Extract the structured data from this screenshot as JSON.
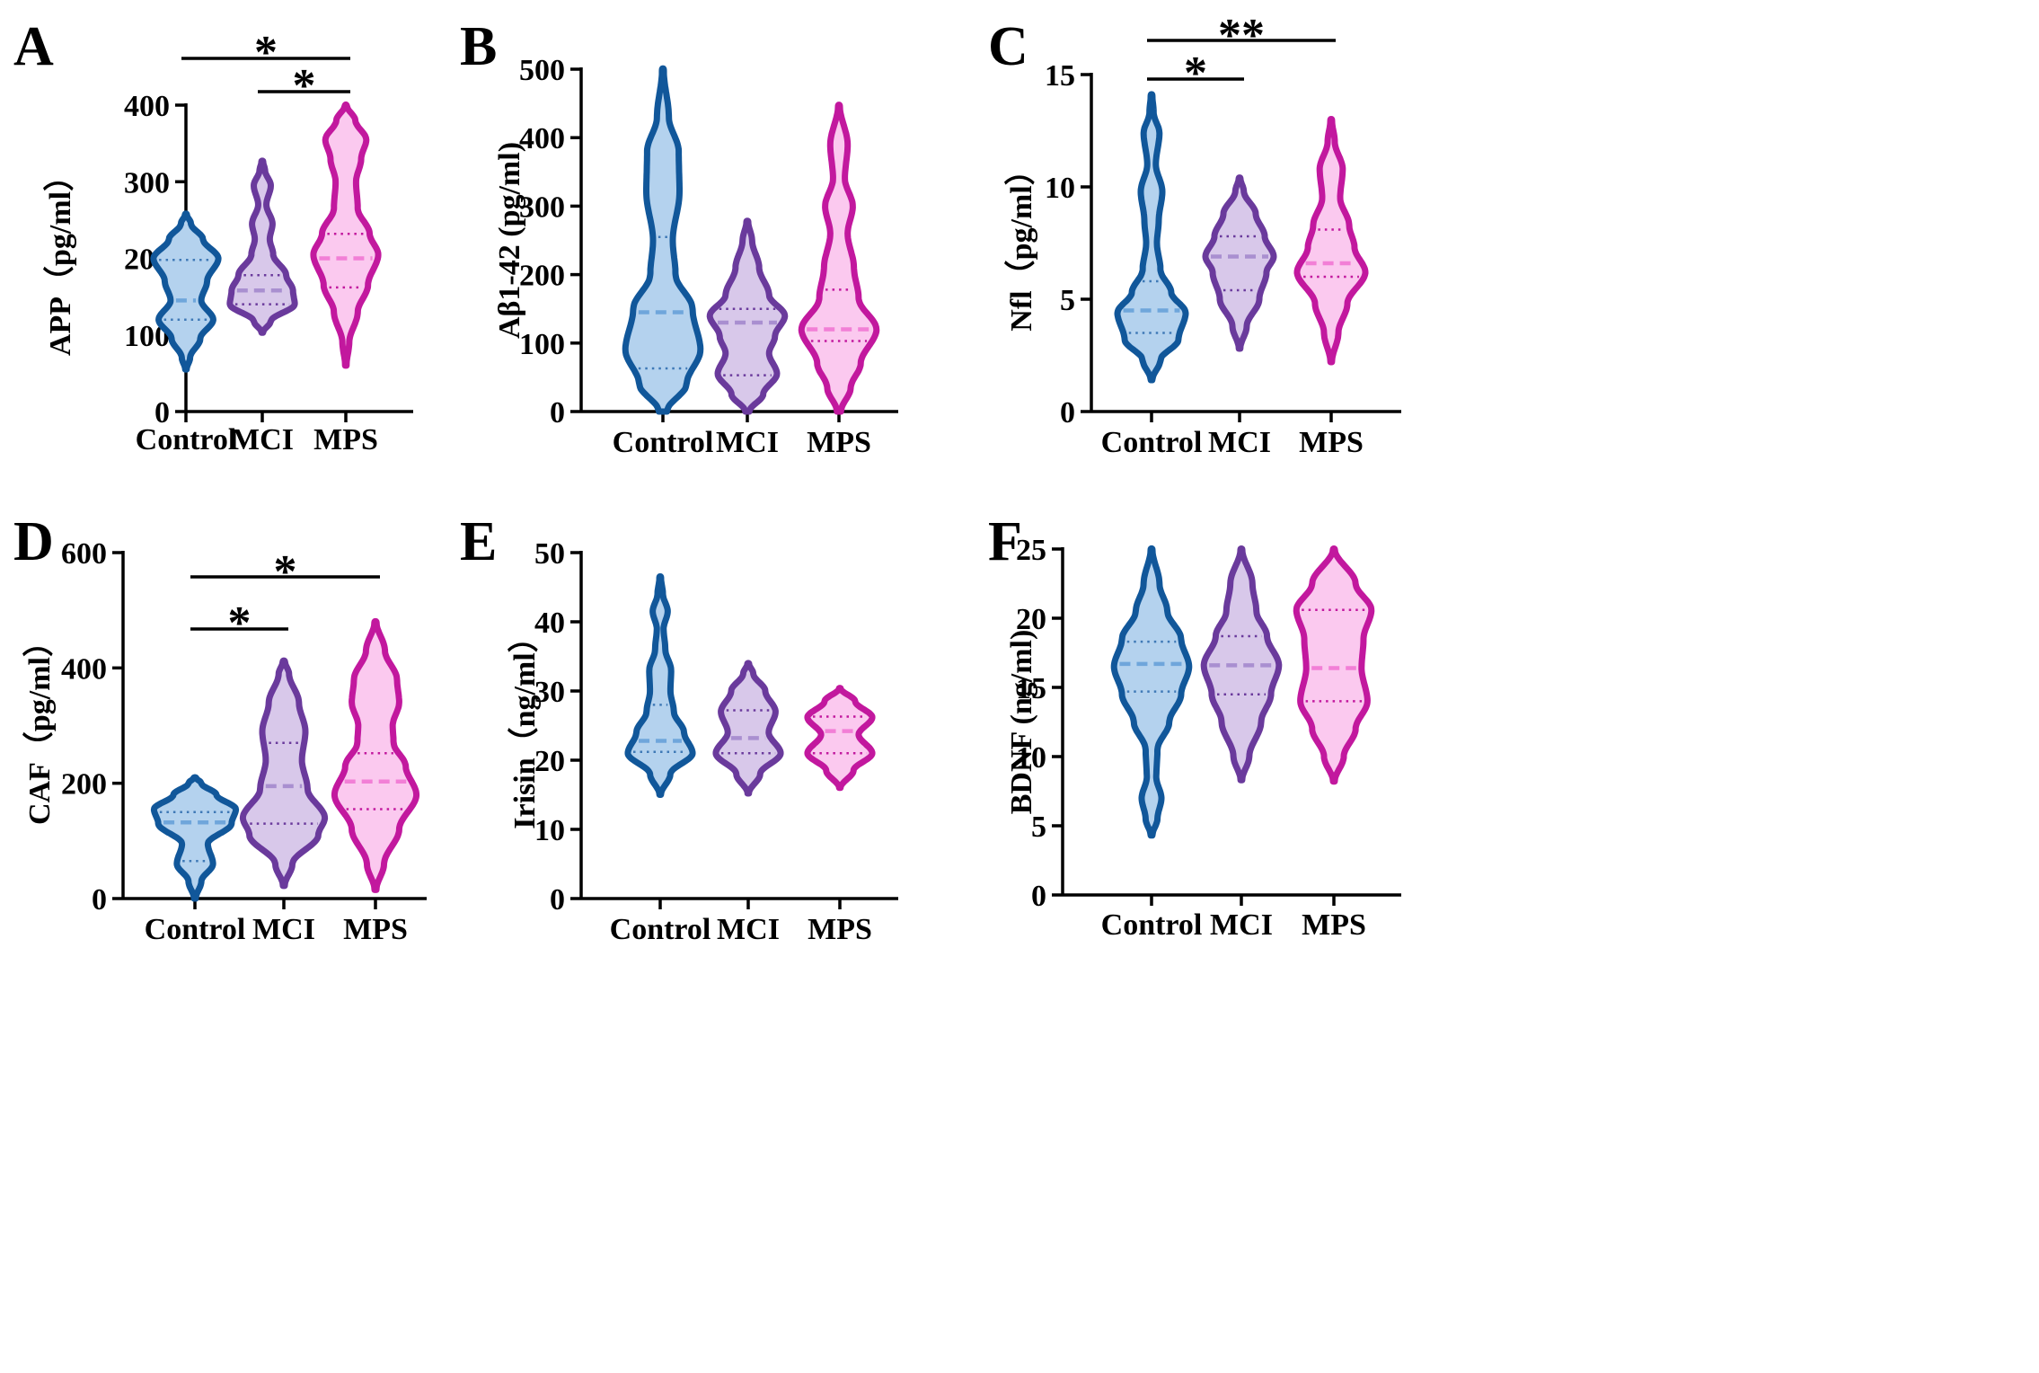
{
  "colors": {
    "Control": {
      "stroke": "#11579a",
      "fill": "#b4d2ee",
      "median": "#6fa6db",
      "quart": "#3f79b6"
    },
    "MCI": {
      "stroke": "#6a3a9c",
      "fill": "#d8c8ea",
      "median": "#a98fd0",
      "quart": "#6a3a9c"
    },
    "MPS": {
      "stroke": "#c2189e",
      "fill": "#fbc9ef",
      "median": "#f27fd6",
      "quart": "#c2189e"
    }
  },
  "chart_data": [
    {
      "panel": "A",
      "type": "violin",
      "ylabel": "APP（pg/ml）",
      "ylim": [
        0,
        400
      ],
      "yticks": [
        "0",
        "100",
        "200",
        "300",
        "400"
      ],
      "categories": [
        "Control",
        "MCI",
        "MPS"
      ],
      "series": [
        {
          "name": "Control",
          "ymin": 55,
          "ymax": 258,
          "q1": 120,
          "median": 145,
          "q3": 198,
          "profile": [
            [
              55,
              0.02
            ],
            [
              70,
              0.12
            ],
            [
              95,
              0.42
            ],
            [
              120,
              0.8
            ],
            [
              145,
              0.45
            ],
            [
              170,
              0.62
            ],
            [
              200,
              0.95
            ],
            [
              225,
              0.5
            ],
            [
              245,
              0.15
            ],
            [
              258,
              0.02
            ]
          ]
        },
        {
          "name": "MCI",
          "ymin": 103,
          "ymax": 327,
          "q1": 140,
          "median": 158,
          "q3": 178,
          "profile": [
            [
              103,
              0.02
            ],
            [
              118,
              0.25
            ],
            [
              140,
              0.95
            ],
            [
              158,
              0.9
            ],
            [
              178,
              0.7
            ],
            [
              205,
              0.32
            ],
            [
              225,
              0.22
            ],
            [
              245,
              0.3
            ],
            [
              270,
              0.12
            ],
            [
              295,
              0.25
            ],
            [
              315,
              0.08
            ],
            [
              327,
              0.02
            ]
          ]
        },
        {
          "name": "MPS",
          "ymin": 60,
          "ymax": 400,
          "q1": 162,
          "median": 200,
          "q3": 232,
          "profile": [
            [
              60,
              0.02
            ],
            [
              90,
              0.1
            ],
            [
              130,
              0.35
            ],
            [
              165,
              0.65
            ],
            [
              205,
              0.95
            ],
            [
              232,
              0.7
            ],
            [
              265,
              0.35
            ],
            [
              300,
              0.3
            ],
            [
              330,
              0.45
            ],
            [
              355,
              0.6
            ],
            [
              380,
              0.28
            ],
            [
              400,
              0.02
            ]
          ]
        }
      ],
      "significance": [
        {
          "from": "Control",
          "to": "MPS",
          "label": "*"
        },
        {
          "from": "MCI",
          "to": "MPS",
          "label": "*"
        }
      ]
    },
    {
      "panel": "B",
      "type": "violin",
      "ylabel": "Aβ1-42 (pg/ml)",
      "ylim": [
        0,
        500
      ],
      "yticks": [
        "0",
        "100",
        "200",
        "300",
        "400",
        "500"
      ],
      "categories": [
        "Control",
        "MCI",
        "MPS"
      ],
      "series": [
        {
          "name": "Control",
          "ymin": 0,
          "ymax": 500,
          "q1": 63,
          "median": 145,
          "q3": 255,
          "profile": [
            [
              0,
              0.1
            ],
            [
              40,
              0.6
            ],
            [
              90,
              0.95
            ],
            [
              150,
              0.75
            ],
            [
              200,
              0.32
            ],
            [
              250,
              0.25
            ],
            [
              320,
              0.42
            ],
            [
              380,
              0.4
            ],
            [
              430,
              0.15
            ],
            [
              500,
              0.02
            ]
          ]
        },
        {
          "name": "MCI",
          "ymin": 0,
          "ymax": 278,
          "q1": 53,
          "median": 130,
          "q3": 150,
          "profile": [
            [
              0,
              0.05
            ],
            [
              25,
              0.4
            ],
            [
              55,
              0.75
            ],
            [
              85,
              0.55
            ],
            [
              110,
              0.7
            ],
            [
              140,
              0.95
            ],
            [
              170,
              0.55
            ],
            [
              210,
              0.3
            ],
            [
              250,
              0.12
            ],
            [
              278,
              0.02
            ]
          ]
        },
        {
          "name": "MPS",
          "ymin": 0,
          "ymax": 447,
          "q1": 103,
          "median": 120,
          "q3": 178,
          "profile": [
            [
              0,
              0.05
            ],
            [
              35,
              0.3
            ],
            [
              70,
              0.55
            ],
            [
              120,
              0.95
            ],
            [
              165,
              0.5
            ],
            [
              210,
              0.38
            ],
            [
              260,
              0.22
            ],
            [
              300,
              0.35
            ],
            [
              340,
              0.15
            ],
            [
              390,
              0.22
            ],
            [
              447,
              0.02
            ]
          ]
        }
      ],
      "significance": []
    },
    {
      "panel": "C",
      "type": "violin",
      "ylabel": "Nfl（pg/ml）",
      "ylim": [
        0,
        15
      ],
      "yticks": [
        "0",
        "5",
        "10",
        "15"
      ],
      "categories": [
        "Control",
        "MCI",
        "MPS"
      ],
      "series": [
        {
          "name": "Control",
          "ymin": 1.4,
          "ymax": 14.1,
          "q1": 3.5,
          "median": 4.5,
          "q3": 5.8,
          "profile": [
            [
              1.4,
              0.02
            ],
            [
              2.3,
              0.25
            ],
            [
              3.2,
              0.75
            ],
            [
              4.4,
              0.95
            ],
            [
              5.3,
              0.55
            ],
            [
              6.3,
              0.25
            ],
            [
              7.5,
              0.15
            ],
            [
              8.5,
              0.2
            ],
            [
              9.8,
              0.3
            ],
            [
              11,
              0.12
            ],
            [
              12.4,
              0.22
            ],
            [
              13.3,
              0.06
            ],
            [
              14.1,
              0.02
            ]
          ]
        },
        {
          "name": "MCI",
          "ymin": 2.8,
          "ymax": 10.4,
          "q1": 5.4,
          "median": 6.9,
          "q3": 7.8,
          "profile": [
            [
              2.8,
              0.02
            ],
            [
              3.8,
              0.2
            ],
            [
              5,
              0.55
            ],
            [
              6.2,
              0.75
            ],
            [
              6.9,
              0.95
            ],
            [
              7.8,
              0.7
            ],
            [
              8.8,
              0.45
            ],
            [
              9.8,
              0.12
            ],
            [
              10.4,
              0.02
            ]
          ]
        },
        {
          "name": "MPS",
          "ymin": 2.2,
          "ymax": 13,
          "q1": 6,
          "median": 6.6,
          "q3": 8.1,
          "profile": [
            [
              2.2,
              0.02
            ],
            [
              3.5,
              0.2
            ],
            [
              4.8,
              0.45
            ],
            [
              6.2,
              0.95
            ],
            [
              7.3,
              0.65
            ],
            [
              8.3,
              0.5
            ],
            [
              9.5,
              0.25
            ],
            [
              10.8,
              0.32
            ],
            [
              12,
              0.1
            ],
            [
              13,
              0.02
            ]
          ]
        }
      ],
      "significance": [
        {
          "from": "Control",
          "to": "MPS",
          "label": "**"
        },
        {
          "from": "Control",
          "to": "MCI",
          "label": "*"
        }
      ]
    },
    {
      "panel": "D",
      "type": "violin",
      "ylabel": "CAF（pg/ml）",
      "ylim": [
        0,
        600
      ],
      "yticks": [
        "0",
        "200",
        "400",
        "600"
      ],
      "categories": [
        "Control",
        "MCI",
        "MPS"
      ],
      "series": [
        {
          "name": "Control",
          "ymin": 0,
          "ymax": 210,
          "q1": 65,
          "median": 132,
          "q3": 150,
          "profile": [
            [
              0,
              0.02
            ],
            [
              30,
              0.15
            ],
            [
              60,
              0.42
            ],
            [
              95,
              0.3
            ],
            [
              130,
              0.85
            ],
            [
              155,
              0.95
            ],
            [
              180,
              0.5
            ],
            [
              200,
              0.15
            ],
            [
              210,
              0.02
            ]
          ]
        },
        {
          "name": "MCI",
          "ymin": 22,
          "ymax": 412,
          "q1": 130,
          "median": 195,
          "q3": 270,
          "profile": [
            [
              22,
              0.02
            ],
            [
              60,
              0.2
            ],
            [
              110,
              0.8
            ],
            [
              140,
              0.95
            ],
            [
              190,
              0.55
            ],
            [
              240,
              0.42
            ],
            [
              290,
              0.5
            ],
            [
              340,
              0.35
            ],
            [
              390,
              0.12
            ],
            [
              412,
              0.02
            ]
          ]
        },
        {
          "name": "MPS",
          "ymin": 15,
          "ymax": 480,
          "q1": 155,
          "median": 203,
          "q3": 252,
          "profile": [
            [
              15,
              0.02
            ],
            [
              60,
              0.2
            ],
            [
              120,
              0.55
            ],
            [
              180,
              0.95
            ],
            [
              230,
              0.7
            ],
            [
              270,
              0.42
            ],
            [
              300,
              0.4
            ],
            [
              340,
              0.55
            ],
            [
              380,
              0.5
            ],
            [
              430,
              0.22
            ],
            [
              480,
              0.02
            ]
          ]
        }
      ],
      "significance": [
        {
          "from": "Control",
          "to": "MPS",
          "label": "*"
        },
        {
          "from": "Control",
          "to": "MCI",
          "label": "*"
        }
      ]
    },
    {
      "panel": "E",
      "type": "violin",
      "ylabel": "Irisin（ng/ml）",
      "ylim": [
        0,
        50
      ],
      "yticks": [
        "0",
        "10",
        "20",
        "30",
        "40",
        "50"
      ],
      "categories": [
        "Control",
        "MCI",
        "MPS"
      ],
      "series": [
        {
          "name": "Control",
          "ymin": 15,
          "ymax": 46.5,
          "q1": 21.2,
          "median": 22.8,
          "q3": 28,
          "profile": [
            [
              15,
              0.02
            ],
            [
              18,
              0.3
            ],
            [
              21,
              0.95
            ],
            [
              24,
              0.7
            ],
            [
              27,
              0.4
            ],
            [
              30,
              0.3
            ],
            [
              33,
              0.32
            ],
            [
              36,
              0.15
            ],
            [
              39,
              0.1
            ],
            [
              41.5,
              0.22
            ],
            [
              44,
              0.08
            ],
            [
              46.5,
              0.02
            ]
          ]
        },
        {
          "name": "MCI",
          "ymin": 15.2,
          "ymax": 34,
          "q1": 21,
          "median": 23.2,
          "q3": 27.2,
          "profile": [
            [
              15.2,
              0.02
            ],
            [
              18,
              0.35
            ],
            [
              21,
              0.95
            ],
            [
              24,
              0.6
            ],
            [
              27,
              0.8
            ],
            [
              30,
              0.5
            ],
            [
              32.5,
              0.15
            ],
            [
              34,
              0.02
            ]
          ]
        },
        {
          "name": "MPS",
          "ymin": 16,
          "ymax": 30.4,
          "q1": 21,
          "median": 24.2,
          "q3": 26.3,
          "profile": [
            [
              16,
              0.02
            ],
            [
              18.5,
              0.4
            ],
            [
              21,
              0.95
            ],
            [
              23.7,
              0.55
            ],
            [
              26.2,
              0.95
            ],
            [
              28.5,
              0.45
            ],
            [
              30.4,
              0.02
            ]
          ]
        }
      ],
      "significance": []
    },
    {
      "panel": "F",
      "type": "violin",
      "ylabel": "BDNF (ng/ml)",
      "ylim": [
        0,
        25
      ],
      "yticks": [
        "0",
        "5",
        "10",
        "15",
        "20",
        "25"
      ],
      "categories": [
        "Control",
        "MCI",
        "MPS"
      ],
      "series": [
        {
          "name": "Control",
          "ymin": 4.3,
          "ymax": 25,
          "q1": 14.7,
          "median": 16.7,
          "q3": 18.3,
          "profile": [
            [
              4.3,
              0.02
            ],
            [
              5.5,
              0.15
            ],
            [
              7,
              0.25
            ],
            [
              8.5,
              0.12
            ],
            [
              10.5,
              0.15
            ],
            [
              12.5,
              0.45
            ],
            [
              14.5,
              0.75
            ],
            [
              16.5,
              0.95
            ],
            [
              18.5,
              0.75
            ],
            [
              20.5,
              0.4
            ],
            [
              22.5,
              0.2
            ],
            [
              25,
              0.02
            ]
          ]
        },
        {
          "name": "MCI",
          "ymin": 8.3,
          "ymax": 25,
          "q1": 14.5,
          "median": 16.6,
          "q3": 18.7,
          "profile": [
            [
              8.3,
              0.02
            ],
            [
              10,
              0.2
            ],
            [
              12.5,
              0.5
            ],
            [
              14.5,
              0.75
            ],
            [
              16.6,
              0.95
            ],
            [
              18.7,
              0.65
            ],
            [
              20.5,
              0.38
            ],
            [
              22.5,
              0.28
            ],
            [
              25,
              0.02
            ]
          ]
        },
        {
          "name": "MPS",
          "ymin": 8.2,
          "ymax": 25,
          "q1": 14,
          "median": 16.4,
          "q3": 20.6,
          "profile": [
            [
              8.2,
              0.02
            ],
            [
              10,
              0.25
            ],
            [
              12,
              0.55
            ],
            [
              14,
              0.85
            ],
            [
              16.4,
              0.7
            ],
            [
              18.5,
              0.75
            ],
            [
              20.6,
              0.95
            ],
            [
              22.5,
              0.55
            ],
            [
              25,
              0.02
            ]
          ]
        }
      ],
      "significance": []
    }
  ]
}
